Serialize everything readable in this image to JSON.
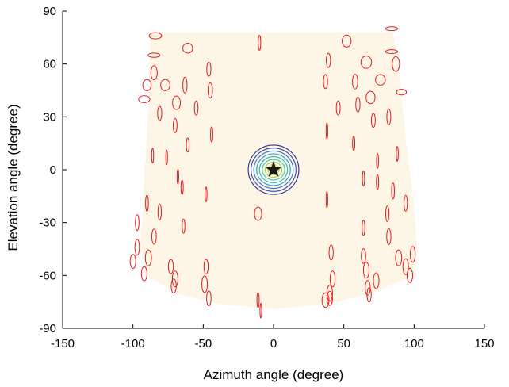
{
  "chart_data": {
    "type": "scatter",
    "title": "",
    "xlabel": "Azimuth angle (degree)",
    "ylabel": "Elevation angle (degree)",
    "xlim": [
      -150,
      150
    ],
    "ylim": [
      -90,
      90
    ],
    "xticks": [
      "-150",
      "-100",
      "-50",
      "0",
      "50",
      "100",
      "150"
    ],
    "yticks": [
      "90",
      "60",
      "30",
      "0",
      "-30",
      "-60",
      "-90"
    ],
    "xtick_values": [
      -150,
      -100,
      -50,
      0,
      50,
      100,
      150
    ],
    "ytick_values": [
      90,
      60,
      30,
      0,
      -30,
      -60,
      -90
    ],
    "grid": false,
    "region_fill": "#fdf6e6",
    "coverage_region": [
      [
        -88,
        78
      ],
      [
        85,
        78
      ],
      [
        90,
        50
      ],
      [
        95,
        10
      ],
      [
        100,
        -20
      ],
      [
        102,
        -45
      ],
      [
        100,
        -60
      ],
      [
        70,
        -70
      ],
      [
        40,
        -76
      ],
      [
        0,
        -79
      ],
      [
        -40,
        -76
      ],
      [
        -70,
        -70
      ],
      [
        -90,
        -60
      ],
      [
        -95,
        -45
      ],
      [
        -93,
        -20
      ],
      [
        -90,
        20
      ],
      [
        -88,
        50
      ]
    ],
    "marker_color": "#e31a1c",
    "target": {
      "x": 0,
      "y": 0,
      "marker": "star",
      "color": "#1a1a1a"
    },
    "contour": {
      "center": [
        0,
        0
      ],
      "levels": [
        {
          "rx": 18,
          "ry": 14,
          "color": "#2a2d8f"
        },
        {
          "rx": 16,
          "ry": 12.3,
          "color": "#3549b0"
        },
        {
          "rx": 14,
          "ry": 10.6,
          "color": "#2f6fd0"
        },
        {
          "rx": 12,
          "ry": 9,
          "color": "#1f9ad8"
        },
        {
          "rx": 10,
          "ry": 7.4,
          "color": "#22b8c8"
        },
        {
          "rx": 8,
          "ry": 5.8,
          "color": "#3fc6a0"
        },
        {
          "rx": 6,
          "ry": 4.3,
          "color": "#9ad36a"
        },
        {
          "rx": 4,
          "ry": 2.9,
          "color": "#e0d040"
        },
        {
          "rx": 2.5,
          "ry": 1.8,
          "color": "#f0b030"
        }
      ]
    },
    "ellipses": [
      {
        "x": -84,
        "y": 76,
        "rx": 4.5,
        "ry": 1.8
      },
      {
        "x": -85,
        "y": 65,
        "rx": 4.2,
        "ry": 1.2
      },
      {
        "x": -61,
        "y": 69,
        "rx": 3.5,
        "ry": 2.8
      },
      {
        "x": -10,
        "y": 72,
        "rx": 0.9,
        "ry": 4.2
      },
      {
        "x": 52,
        "y": 73,
        "rx": 3.2,
        "ry": 3.4
      },
      {
        "x": 84,
        "y": 80,
        "rx": 4.2,
        "ry": 1.1
      },
      {
        "x": 84,
        "y": 67,
        "rx": 4.2,
        "ry": 1.1
      },
      {
        "x": -85,
        "y": 55,
        "rx": 2.3,
        "ry": 4.0
      },
      {
        "x": -90,
        "y": 48,
        "rx": 3.0,
        "ry": 3.2
      },
      {
        "x": -77,
        "y": 48,
        "rx": 3.3,
        "ry": 3.2
      },
      {
        "x": -63,
        "y": 48,
        "rx": 1.5,
        "ry": 4.5
      },
      {
        "x": -45,
        "y": 45,
        "rx": 1.6,
        "ry": 4.3
      },
      {
        "x": -46,
        "y": 57,
        "rx": 1.5,
        "ry": 4.0
      },
      {
        "x": -92,
        "y": 40,
        "rx": 4.0,
        "ry": 2.0
      },
      {
        "x": -69,
        "y": 38,
        "rx": 2.8,
        "ry": 3.8
      },
      {
        "x": -55,
        "y": 35,
        "rx": 1.3,
        "ry": 4.0
      },
      {
        "x": -81,
        "y": 32,
        "rx": 1.5,
        "ry": 4.0
      },
      {
        "x": -70,
        "y": 25,
        "rx": 1.4,
        "ry": 4.0
      },
      {
        "x": -44,
        "y": 20,
        "rx": 0.8,
        "ry": 4.3
      },
      {
        "x": -61,
        "y": 14,
        "rx": 1.0,
        "ry": 4.0
      },
      {
        "x": -86,
        "y": 8,
        "rx": 0.7,
        "ry": 4.2
      },
      {
        "x": -76,
        "y": 7,
        "rx": 0.6,
        "ry": 4.2
      },
      {
        "x": -68,
        "y": -4,
        "rx": 0.6,
        "ry": 4.2
      },
      {
        "x": -65,
        "y": -10,
        "rx": 0.8,
        "ry": 4.0
      },
      {
        "x": -48,
        "y": -14,
        "rx": 0.7,
        "ry": 4.2
      },
      {
        "x": -90,
        "y": -19,
        "rx": 1.0,
        "ry": 4.5
      },
      {
        "x": -81,
        "y": -24,
        "rx": 1.2,
        "ry": 4.5
      },
      {
        "x": -97,
        "y": -30,
        "rx": 1.3,
        "ry": 4.5
      },
      {
        "x": -64,
        "y": -32,
        "rx": 1.0,
        "ry": 4.0
      },
      {
        "x": -85,
        "y": -38,
        "rx": 1.6,
        "ry": 4.3
      },
      {
        "x": -97,
        "y": -44,
        "rx": 1.6,
        "ry": 4.5
      },
      {
        "x": -89,
        "y": -50,
        "rx": 2.2,
        "ry": 4.5
      },
      {
        "x": -100,
        "y": -52,
        "rx": 2.0,
        "ry": 4.0
      },
      {
        "x": -73,
        "y": -55,
        "rx": 1.8,
        "ry": 4.0
      },
      {
        "x": -48,
        "y": -55,
        "rx": 1.5,
        "ry": 4.2
      },
      {
        "x": -92,
        "y": -59,
        "rx": 2.0,
        "ry": 4.0
      },
      {
        "x": -70,
        "y": -62,
        "rx": 2.0,
        "ry": 4.5
      },
      {
        "x": -71,
        "y": -66,
        "rx": 1.8,
        "ry": 4.0
      },
      {
        "x": -49,
        "y": -65,
        "rx": 2.0,
        "ry": 4.8
      },
      {
        "x": -46,
        "y": -73,
        "rx": 1.6,
        "ry": 4.2
      },
      {
        "x": -11,
        "y": -74,
        "rx": 0.8,
        "ry": 4.2
      },
      {
        "x": -9,
        "y": -80,
        "rx": 0.6,
        "ry": 4.2
      },
      {
        "x": -11,
        "y": -25,
        "rx": 2.6,
        "ry": 3.8
      },
      {
        "x": 38,
        "y": 22,
        "rx": 0.6,
        "ry": 4.6
      },
      {
        "x": 38,
        "y": -17,
        "rx": 0.6,
        "ry": 4.6
      },
      {
        "x": 39,
        "y": 62,
        "rx": 1.5,
        "ry": 4.0
      },
      {
        "x": 37,
        "y": 50,
        "rx": 1.5,
        "ry": 4.0
      },
      {
        "x": 58,
        "y": 50,
        "rx": 1.9,
        "ry": 4.2
      },
      {
        "x": 66,
        "y": 61,
        "rx": 3.8,
        "ry": 3.5
      },
      {
        "x": 76,
        "y": 51,
        "rx": 3.5,
        "ry": 3.0
      },
      {
        "x": 87,
        "y": 60,
        "rx": 2.6,
        "ry": 4.2
      },
      {
        "x": 91,
        "y": 44,
        "rx": 3.5,
        "ry": 1.6
      },
      {
        "x": 69,
        "y": 41,
        "rx": 3.2,
        "ry": 3.5
      },
      {
        "x": 60,
        "y": 37,
        "rx": 1.5,
        "ry": 4.2
      },
      {
        "x": 46,
        "y": 35,
        "rx": 1.4,
        "ry": 4.0
      },
      {
        "x": 71,
        "y": 28,
        "rx": 1.4,
        "ry": 4.0
      },
      {
        "x": 82,
        "y": 30,
        "rx": 1.4,
        "ry": 4.5
      },
      {
        "x": 57,
        "y": 15,
        "rx": 0.8,
        "ry": 4.0
      },
      {
        "x": 88,
        "y": 9,
        "rx": 0.7,
        "ry": 4.2
      },
      {
        "x": 74,
        "y": 5,
        "rx": 0.7,
        "ry": 4.2
      },
      {
        "x": 64,
        "y": -5,
        "rx": 0.8,
        "ry": 4.2
      },
      {
        "x": 74,
        "y": -7,
        "rx": 0.8,
        "ry": 4.2
      },
      {
        "x": 85,
        "y": -12,
        "rx": 1.0,
        "ry": 4.5
      },
      {
        "x": 94,
        "y": -19,
        "rx": 1.2,
        "ry": 4.5
      },
      {
        "x": 81,
        "y": -25,
        "rx": 1.2,
        "ry": 4.5
      },
      {
        "x": 64,
        "y": -33,
        "rx": 1.0,
        "ry": 4.3
      },
      {
        "x": 82,
        "y": -38,
        "rx": 1.5,
        "ry": 4.5
      },
      {
        "x": 41,
        "y": -47,
        "rx": 1.5,
        "ry": 4.2
      },
      {
        "x": 64,
        "y": -49,
        "rx": 1.6,
        "ry": 4.2
      },
      {
        "x": 89,
        "y": -50,
        "rx": 2.2,
        "ry": 4.5
      },
      {
        "x": 99,
        "y": -48,
        "rx": 1.8,
        "ry": 4.5
      },
      {
        "x": 66,
        "y": -57,
        "rx": 2.0,
        "ry": 4.5
      },
      {
        "x": 94,
        "y": -55,
        "rx": 2.0,
        "ry": 4.5
      },
      {
        "x": 73,
        "y": -63,
        "rx": 2.0,
        "ry": 4.5
      },
      {
        "x": 42,
        "y": -62,
        "rx": 1.8,
        "ry": 4.5
      },
      {
        "x": 97,
        "y": -60,
        "rx": 2.0,
        "ry": 4.0
      },
      {
        "x": 67,
        "y": -67,
        "rx": 1.8,
        "ry": 4.2
      },
      {
        "x": 68,
        "y": -71,
        "rx": 1.5,
        "ry": 4.0
      },
      {
        "x": 40,
        "y": -70,
        "rx": 2.0,
        "ry": 4.5
      },
      {
        "x": 37,
        "y": -74,
        "rx": 2.5,
        "ry": 4.2
      },
      {
        "x": 40,
        "y": -73,
        "rx": 2.0,
        "ry": 4.0
      }
    ]
  }
}
